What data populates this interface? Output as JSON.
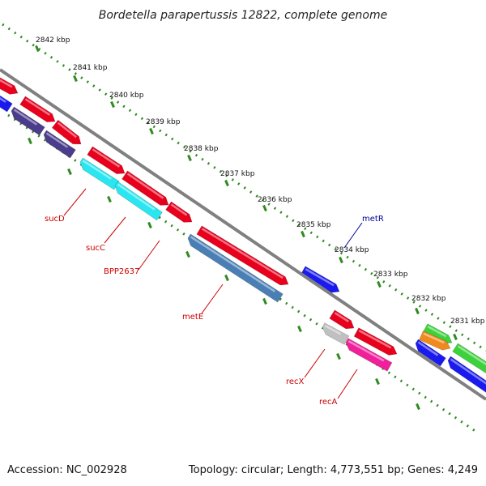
{
  "title": "Bordetella parapertussis 12822, complete genome",
  "footer": {
    "accession": "Accession: NC_002928",
    "summary": "Topology: circular; Length: 4,773,551 bp; Genes: 4,249"
  },
  "scale_ticks": [
    "2842 kbp",
    "2841 kbp",
    "2840 kbp",
    "2839 kbp",
    "2838 kbp",
    "2837 kbp",
    "2836 kbp",
    "2835 kbp",
    "2834 kbp",
    "2833 kbp",
    "2832 kbp",
    "2831 kbp"
  ],
  "gene_labels": [
    {
      "text": "sucD",
      "color": "#cc0000"
    },
    {
      "text": "sucC",
      "color": "#cc0000"
    },
    {
      "text": "BPP2637",
      "color": "#cc0000"
    },
    {
      "text": "metE",
      "color": "#cc0000"
    },
    {
      "text": "recX",
      "color": "#cc0000"
    },
    {
      "text": "recA",
      "color": "#cc0000"
    },
    {
      "text": "metR",
      "color": "#000099"
    }
  ],
  "colors": {
    "backbone": "#808080",
    "dots": "#2f8a1f",
    "gene_red": "#e8001c",
    "gene_blue": "#1a1aee",
    "gene_purple": "#4b3c8c",
    "gene_cyan": "#2ae6f0",
    "gene_steelblue": "#4a7fb5",
    "gene_grey": "#c0c0c0",
    "gene_pink": "#f0209a",
    "gene_green": "#3cd23c",
    "gene_orange": "#f08a1e"
  }
}
